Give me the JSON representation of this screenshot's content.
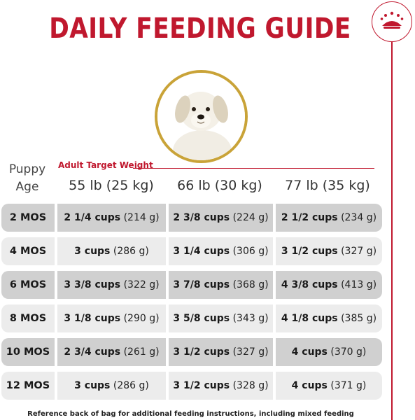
{
  "title": "DAILY FEEDING GUIDE",
  "logo": {
    "icon": "royal-canin-crown-icon",
    "color": "#c0182e"
  },
  "image": {
    "icon": "golden-retriever-puppy",
    "ring_color": "#c9a338"
  },
  "table": {
    "age_header_line1": "Puppy",
    "age_header_line2": "Age",
    "target_label": "Adult Target Weight",
    "weights": [
      "55 lb (25 kg)",
      "66 lb (30 kg)",
      "77 lb (35 kg)"
    ],
    "rows": [
      {
        "age": "2 MOS",
        "cells": [
          {
            "cups": "2 1/4 cups",
            "grams": "(214 g)"
          },
          {
            "cups": "2 3/8 cups",
            "grams": "(224 g)"
          },
          {
            "cups": "2 1/2 cups",
            "grams": "(234 g)"
          }
        ]
      },
      {
        "age": "4 MOS",
        "cells": [
          {
            "cups": "3 cups",
            "grams": "(286 g)"
          },
          {
            "cups": "3 1/4 cups",
            "grams": "(306 g)"
          },
          {
            "cups": "3 1/2 cups",
            "grams": "(327 g)"
          }
        ]
      },
      {
        "age": "6 MOS",
        "cells": [
          {
            "cups": "3 3/8 cups",
            "grams": "(322 g)"
          },
          {
            "cups": "3 7/8 cups",
            "grams": "(368 g)"
          },
          {
            "cups": "4 3/8 cups",
            "grams": "(413 g)"
          }
        ]
      },
      {
        "age": "8 MOS",
        "cells": [
          {
            "cups": "3 1/8 cups",
            "grams": "(290 g)"
          },
          {
            "cups": "3 5/8 cups",
            "grams": "(343 g)"
          },
          {
            "cups": "4 1/8 cups",
            "grams": "(385 g)"
          }
        ]
      },
      {
        "age": "10 MOS",
        "cells": [
          {
            "cups": "2 3/4 cups",
            "grams": "(261 g)"
          },
          {
            "cups": "3 1/2 cups",
            "grams": "(327 g)"
          },
          {
            "cups": "4 cups",
            "grams": "(370 g)"
          }
        ]
      },
      {
        "age": "12 MOS",
        "cells": [
          {
            "cups": "3 cups",
            "grams": "(286 g)"
          },
          {
            "cups": "3 1/2 cups",
            "grams": "(328 g)"
          },
          {
            "cups": "4 cups",
            "grams": "(371 g)"
          }
        ]
      }
    ]
  },
  "footnote": "Reference back of bag for additional feeding instructions, including mixed feeding",
  "colors": {
    "brand_red": "#c0182e",
    "gold": "#c9a338",
    "row_dark": "#d0d0d0",
    "row_light": "#ececec"
  }
}
